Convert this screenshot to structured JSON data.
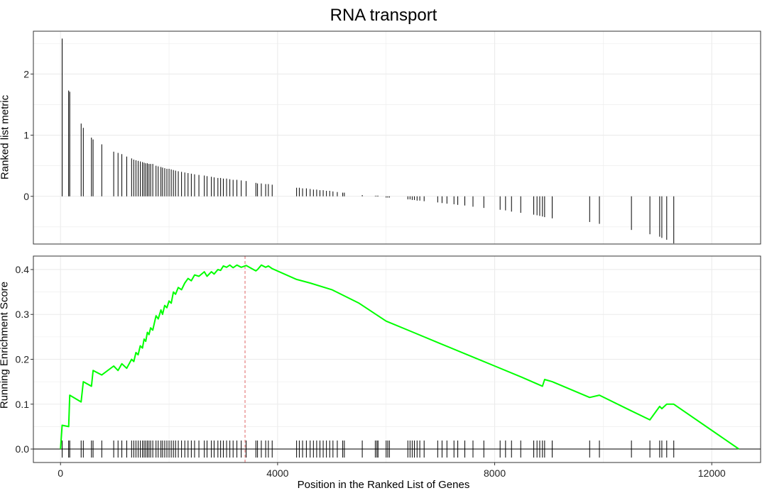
{
  "chart_data": {
    "type": "gsea-enrichment-plot",
    "title": "RNA transport",
    "xlabel": "Position in the Ranked List of Genes",
    "xlim": [
      -500,
      12900
    ],
    "xticks": [
      0,
      4000,
      8000,
      12000
    ],
    "xtick_labels": [
      "0",
      "4000",
      "8000",
      "12000"
    ],
    "grid": true,
    "colors": {
      "running_score": "#00ff00",
      "max_line": "#e06666",
      "bars": "#000000",
      "grid": "#ebebeb"
    },
    "top_panel": {
      "type": "bar",
      "ylabel": "Ranked list metric",
      "ylim": [
        -0.78,
        2.7
      ],
      "yticks": [
        0,
        1,
        2
      ],
      "ytick_labels": [
        "0",
        "1",
        "2"
      ],
      "positions": [
        30,
        150,
        170,
        380,
        420,
        570,
        600,
        760,
        980,
        1060,
        1130,
        1220,
        1310,
        1350,
        1390,
        1430,
        1470,
        1510,
        1540,
        1570,
        1600,
        1630,
        1660,
        1700,
        1760,
        1800,
        1850,
        1880,
        1920,
        1960,
        2000,
        2040,
        2080,
        2120,
        2170,
        2230,
        2290,
        2350,
        2410,
        2470,
        2550,
        2650,
        2700,
        2780,
        2830,
        2900,
        2950,
        3000,
        3060,
        3120,
        3180,
        3250,
        3330,
        3420,
        3600,
        3630,
        3700,
        3780,
        3830,
        3900,
        4350,
        4400,
        4460,
        4530,
        4600,
        4660,
        4720,
        4780,
        4840,
        4900,
        4960,
        5020,
        5100,
        5200,
        5230,
        5560,
        5800,
        5830,
        5850,
        6000,
        6030,
        6060,
        6400,
        6440,
        6480,
        6520,
        6570,
        6620,
        6700,
        6950,
        7030,
        7120,
        7250,
        7320,
        7450,
        7600,
        7800,
        8100,
        8200,
        8310,
        8480,
        8720,
        8780,
        8830,
        8880,
        8920,
        9060,
        9750,
        9930,
        10520,
        10860,
        11040,
        11080,
        11170,
        11300
      ],
      "values": [
        2.58,
        1.73,
        1.71,
        1.19,
        1.12,
        0.96,
        0.93,
        0.85,
        0.73,
        0.71,
        0.69,
        0.65,
        0.62,
        0.6,
        0.59,
        0.58,
        0.57,
        0.56,
        0.55,
        0.54,
        0.54,
        0.53,
        0.53,
        0.53,
        0.5,
        0.49,
        0.48,
        0.47,
        0.46,
        0.45,
        0.45,
        0.44,
        0.43,
        0.42,
        0.41,
        0.4,
        0.39,
        0.38,
        0.37,
        0.36,
        0.35,
        0.34,
        0.33,
        0.32,
        0.31,
        0.3,
        0.3,
        0.29,
        0.29,
        0.28,
        0.27,
        0.27,
        0.26,
        0.25,
        0.22,
        0.21,
        0.21,
        0.2,
        0.2,
        0.19,
        0.14,
        0.14,
        0.13,
        0.13,
        0.12,
        0.11,
        0.11,
        0.1,
        0.1,
        0.09,
        0.09,
        0.08,
        0.07,
        0.06,
        0.06,
        0.02,
        0.01,
        0.01,
        0.01,
        -0.02,
        -0.02,
        -0.02,
        -0.05,
        -0.05,
        -0.06,
        -0.06,
        -0.07,
        -0.07,
        -0.08,
        -0.1,
        -0.11,
        -0.12,
        -0.13,
        -0.14,
        -0.15,
        -0.17,
        -0.19,
        -0.22,
        -0.23,
        -0.25,
        -0.27,
        -0.3,
        -0.31,
        -0.32,
        -0.33,
        -0.34,
        -0.36,
        -0.42,
        -0.45,
        -0.55,
        -0.62,
        -0.66,
        -0.68,
        -0.71,
        -0.77
      ]
    },
    "bottom_panel": {
      "type": "line",
      "ylabel": "Running Enrichment Score",
      "ylim": [
        -0.03,
        0.43
      ],
      "yticks": [
        0.0,
        0.1,
        0.2,
        0.3,
        0.4
      ],
      "ytick_labels": [
        "0.0",
        "0.1",
        "0.2",
        "0.3",
        "0.4"
      ],
      "max_position": 3400,
      "x": [
        0,
        30,
        150,
        170,
        380,
        420,
        570,
        600,
        760,
        980,
        1060,
        1130,
        1220,
        1310,
        1350,
        1390,
        1430,
        1470,
        1510,
        1540,
        1570,
        1600,
        1630,
        1660,
        1700,
        1760,
        1800,
        1850,
        1880,
        1920,
        1960,
        2000,
        2040,
        2080,
        2120,
        2170,
        2230,
        2290,
        2350,
        2410,
        2470,
        2550,
        2650,
        2700,
        2780,
        2830,
        2900,
        2950,
        3000,
        3060,
        3120,
        3180,
        3250,
        3330,
        3420,
        3600,
        3630,
        3700,
        3780,
        3830,
        3900,
        4350,
        4600,
        5000,
        5500,
        6000,
        6500,
        7000,
        7500,
        8000,
        8500,
        8880,
        8920,
        9060,
        9750,
        9930,
        10520,
        10860,
        11040,
        11080,
        11170,
        11300,
        12500
      ],
      "y": [
        0.0,
        0.053,
        0.05,
        0.12,
        0.105,
        0.15,
        0.14,
        0.175,
        0.165,
        0.185,
        0.175,
        0.19,
        0.18,
        0.2,
        0.195,
        0.215,
        0.21,
        0.23,
        0.225,
        0.245,
        0.24,
        0.26,
        0.255,
        0.27,
        0.265,
        0.297,
        0.29,
        0.31,
        0.3,
        0.32,
        0.315,
        0.33,
        0.325,
        0.35,
        0.345,
        0.36,
        0.355,
        0.37,
        0.38,
        0.375,
        0.388,
        0.385,
        0.395,
        0.385,
        0.395,
        0.39,
        0.4,
        0.398,
        0.408,
        0.405,
        0.41,
        0.404,
        0.41,
        0.405,
        0.409,
        0.397,
        0.4,
        0.41,
        0.405,
        0.408,
        0.402,
        0.378,
        0.37,
        0.355,
        0.325,
        0.285,
        0.26,
        0.235,
        0.21,
        0.185,
        0.16,
        0.14,
        0.155,
        0.15,
        0.115,
        0.12,
        0.085,
        0.065,
        0.095,
        0.09,
        0.1,
        0.1,
        0.0
      ],
      "hit_positions": [
        30,
        150,
        170,
        380,
        420,
        570,
        600,
        760,
        980,
        1060,
        1130,
        1220,
        1310,
        1350,
        1390,
        1430,
        1470,
        1510,
        1540,
        1570,
        1600,
        1630,
        1660,
        1700,
        1760,
        1800,
        1850,
        1880,
        1920,
        1960,
        2000,
        2040,
        2080,
        2120,
        2170,
        2230,
        2290,
        2350,
        2410,
        2470,
        2550,
        2650,
        2700,
        2780,
        2830,
        2900,
        2950,
        3000,
        3060,
        3120,
        3180,
        3250,
        3330,
        3420,
        3600,
        3630,
        3700,
        3780,
        3830,
        3900,
        4350,
        4400,
        4460,
        4530,
        4600,
        4660,
        4720,
        4780,
        4840,
        4900,
        4960,
        5020,
        5100,
        5200,
        5230,
        5560,
        5800,
        5830,
        5850,
        6000,
        6030,
        6060,
        6400,
        6440,
        6480,
        6520,
        6570,
        6620,
        6700,
        6950,
        7030,
        7120,
        7250,
        7320,
        7450,
        7600,
        7800,
        8100,
        8200,
        8310,
        8480,
        8720,
        8780,
        8830,
        8880,
        8920,
        9060,
        9750,
        9930,
        10520,
        10860,
        11040,
        11080,
        11170,
        11300
      ]
    }
  }
}
